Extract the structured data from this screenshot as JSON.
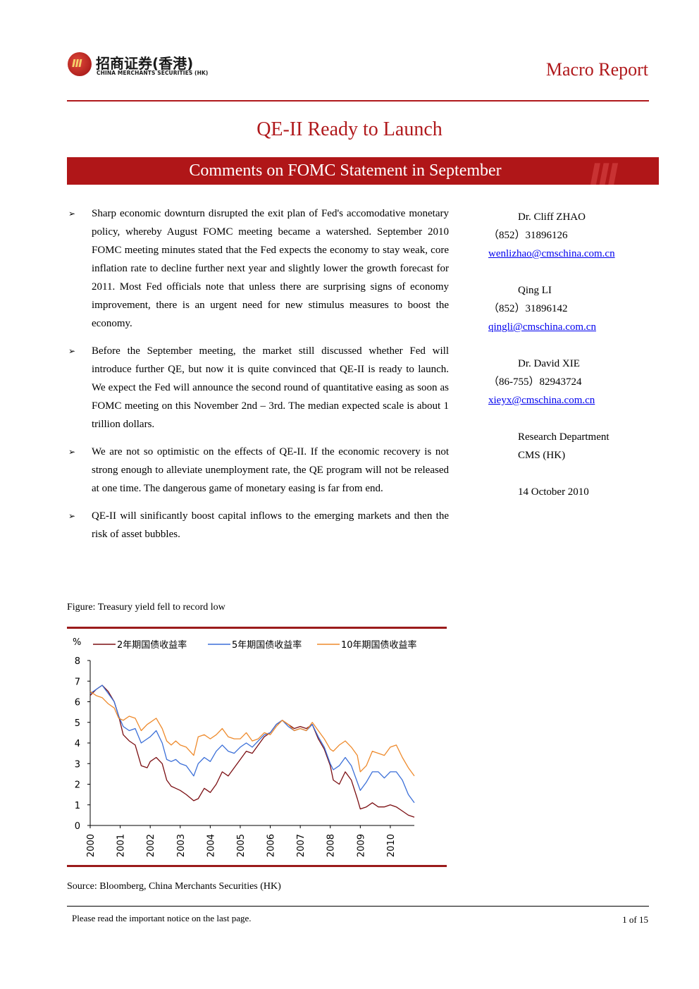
{
  "header": {
    "logo_cn": "招商证券(香港)",
    "logo_en": "CHINA MERCHANTS SECURITIES (HK)",
    "report_type": "Macro Report"
  },
  "title": "QE-II Ready to Launch",
  "subtitle": "Comments on FOMC Statement in September",
  "bullets": [
    "Sharp economic downturn disrupted the exit plan of Fed's accomodative monetary policy, whereby August FOMC meeting became a watershed. September 2010 FOMC meeting minutes stated that the Fed expects the economy to stay weak, core inflation rate to decline further next year and slightly lower the growth forecast for 2011. Most Fed officials note that unless there are surprising signs of economy improvement, there is an urgent need for new stimulus measures to boost the economy.",
    "Before the September meeting, the market still discussed whether Fed will introduce further QE, but now it is quite convinced that QE-II is ready to launch. We expect the Fed will announce the second round of quantitative easing as soon as FOMC meeting on this November 2nd – 3rd. The median expected scale is about 1 trillion dollars.",
    "We are not so optimistic on the effects of QE-II. If the economic recovery is not strong enough to alleviate unemployment rate, the QE program will not be released at one time. The dangerous game of monetary easing is far from end.",
    "QE-II will sinificantly boost capital inflows to the emerging markets and then the risk of asset bubbles."
  ],
  "contacts": [
    {
      "name": "Dr. Cliff ZHAO",
      "phone": "（852）31896126",
      "email": "wenlizhao@cmschina.com.cn"
    },
    {
      "name": "Qing LI",
      "phone": "（852）31896142",
      "email": "qingli@cmschina.com.cn"
    },
    {
      "name": "Dr. David XIE",
      "phone": "（86-755）82943724",
      "email": "xieyx@cmschina.com.cn"
    }
  ],
  "department": {
    "line1": "Research Department",
    "line2": "CMS (HK)",
    "date": "14 October 2010"
  },
  "figure": {
    "caption": "Figure: Treasury yield fell to record low",
    "source": "Source: Bloomberg, China Merchants Securities (HK)"
  },
  "chart_data": {
    "type": "line",
    "title": "",
    "xlabel": "",
    "ylabel": "%",
    "x_ticks": [
      "2000",
      "2001",
      "2002",
      "2003",
      "2004",
      "2005",
      "2006",
      "2007",
      "2008",
      "2009",
      "2010"
    ],
    "y_ticks": [
      0,
      1,
      2,
      3,
      4,
      5,
      6,
      7,
      8
    ],
    "xlim": [
      2000.0,
      2010.8
    ],
    "ylim": [
      0,
      8
    ],
    "legend": "top",
    "series": [
      {
        "name": "2年期国债收益率",
        "color": "#7b0e12",
        "x": [
          2000.0,
          2000.2,
          2000.4,
          2000.6,
          2000.8,
          2000.95,
          2001.1,
          2001.3,
          2001.5,
          2001.7,
          2001.9,
          2002.0,
          2002.2,
          2002.4,
          2002.55,
          2002.7,
          2002.85,
          2003.0,
          2003.2,
          2003.45,
          2003.6,
          2003.8,
          2004.0,
          2004.2,
          2004.4,
          2004.6,
          2004.8,
          2005.0,
          2005.2,
          2005.4,
          2005.6,
          2005.8,
          2006.0,
          2006.2,
          2006.4,
          2006.6,
          2006.8,
          2007.0,
          2007.2,
          2007.4,
          2007.6,
          2007.8,
          2008.0,
          2008.1,
          2008.3,
          2008.5,
          2008.7,
          2008.9,
          2009.0,
          2009.2,
          2009.4,
          2009.6,
          2009.8,
          2010.0,
          2010.2,
          2010.4,
          2010.6,
          2010.8
        ],
        "y": [
          6.3,
          6.6,
          6.8,
          6.5,
          6.0,
          5.3,
          4.4,
          4.1,
          3.9,
          2.9,
          2.8,
          3.1,
          3.3,
          3.0,
          2.2,
          1.9,
          1.8,
          1.7,
          1.5,
          1.2,
          1.3,
          1.8,
          1.6,
          2.0,
          2.6,
          2.4,
          2.8,
          3.2,
          3.6,
          3.5,
          3.9,
          4.3,
          4.5,
          4.9,
          5.1,
          4.9,
          4.7,
          4.8,
          4.7,
          4.9,
          4.2,
          3.7,
          2.9,
          2.2,
          2.0,
          2.6,
          2.2,
          1.3,
          0.8,
          0.9,
          1.1,
          0.9,
          0.9,
          1.0,
          0.9,
          0.7,
          0.5,
          0.4
        ]
      },
      {
        "name": "5年期国债收益率",
        "color": "#3b6fd8",
        "x": [
          2000.0,
          2000.2,
          2000.4,
          2000.6,
          2000.8,
          2000.95,
          2001.1,
          2001.3,
          2001.5,
          2001.7,
          2001.9,
          2002.0,
          2002.2,
          2002.4,
          2002.55,
          2002.7,
          2002.85,
          2003.0,
          2003.2,
          2003.45,
          2003.6,
          2003.8,
          2004.0,
          2004.2,
          2004.4,
          2004.6,
          2004.8,
          2005.0,
          2005.2,
          2005.4,
          2005.6,
          2005.8,
          2006.0,
          2006.2,
          2006.4,
          2006.6,
          2006.8,
          2007.0,
          2007.2,
          2007.4,
          2007.6,
          2007.8,
          2008.0,
          2008.1,
          2008.3,
          2008.5,
          2008.7,
          2008.9,
          2009.0,
          2009.2,
          2009.4,
          2009.6,
          2009.8,
          2010.0,
          2010.2,
          2010.4,
          2010.6,
          2010.8
        ],
        "y": [
          6.4,
          6.6,
          6.8,
          6.4,
          6.0,
          5.3,
          4.8,
          4.6,
          4.7,
          4.0,
          4.2,
          4.3,
          4.6,
          4.0,
          3.2,
          3.1,
          3.2,
          3.0,
          2.9,
          2.4,
          3.0,
          3.3,
          3.1,
          3.6,
          3.9,
          3.6,
          3.5,
          3.8,
          4.0,
          3.8,
          4.1,
          4.4,
          4.5,
          4.9,
          5.1,
          4.8,
          4.6,
          4.7,
          4.6,
          4.9,
          4.3,
          3.8,
          3.0,
          2.7,
          2.9,
          3.3,
          2.9,
          2.1,
          1.7,
          2.1,
          2.6,
          2.6,
          2.3,
          2.6,
          2.6,
          2.2,
          1.5,
          1.1
        ]
      },
      {
        "name": "10年期国债收益率",
        "color": "#ee8a2c",
        "x": [
          2000.0,
          2000.2,
          2000.4,
          2000.6,
          2000.8,
          2000.95,
          2001.1,
          2001.3,
          2001.5,
          2001.7,
          2001.9,
          2002.0,
          2002.2,
          2002.4,
          2002.55,
          2002.7,
          2002.85,
          2003.0,
          2003.2,
          2003.45,
          2003.6,
          2003.8,
          2004.0,
          2004.2,
          2004.4,
          2004.6,
          2004.8,
          2005.0,
          2005.2,
          2005.4,
          2005.6,
          2005.8,
          2006.0,
          2006.2,
          2006.4,
          2006.6,
          2006.8,
          2007.0,
          2007.2,
          2007.4,
          2007.6,
          2007.8,
          2008.0,
          2008.1,
          2008.3,
          2008.5,
          2008.7,
          2008.9,
          2009.0,
          2009.2,
          2009.4,
          2009.6,
          2009.8,
          2010.0,
          2010.2,
          2010.4,
          2010.6,
          2010.8
        ],
        "y": [
          6.5,
          6.3,
          6.2,
          5.9,
          5.7,
          5.2,
          5.1,
          5.3,
          5.2,
          4.6,
          4.9,
          5.0,
          5.2,
          4.7,
          4.1,
          3.9,
          4.1,
          3.9,
          3.8,
          3.4,
          4.3,
          4.4,
          4.2,
          4.4,
          4.7,
          4.3,
          4.2,
          4.2,
          4.5,
          4.1,
          4.2,
          4.5,
          4.4,
          4.8,
          5.1,
          4.9,
          4.6,
          4.7,
          4.6,
          5.0,
          4.6,
          4.2,
          3.7,
          3.6,
          3.9,
          4.1,
          3.8,
          3.4,
          2.6,
          2.9,
          3.6,
          3.5,
          3.4,
          3.8,
          3.9,
          3.3,
          2.8,
          2.4
        ]
      }
    ]
  },
  "footer": {
    "notice": "Please read the important notice on the last page.",
    "page": "1 of 15"
  }
}
